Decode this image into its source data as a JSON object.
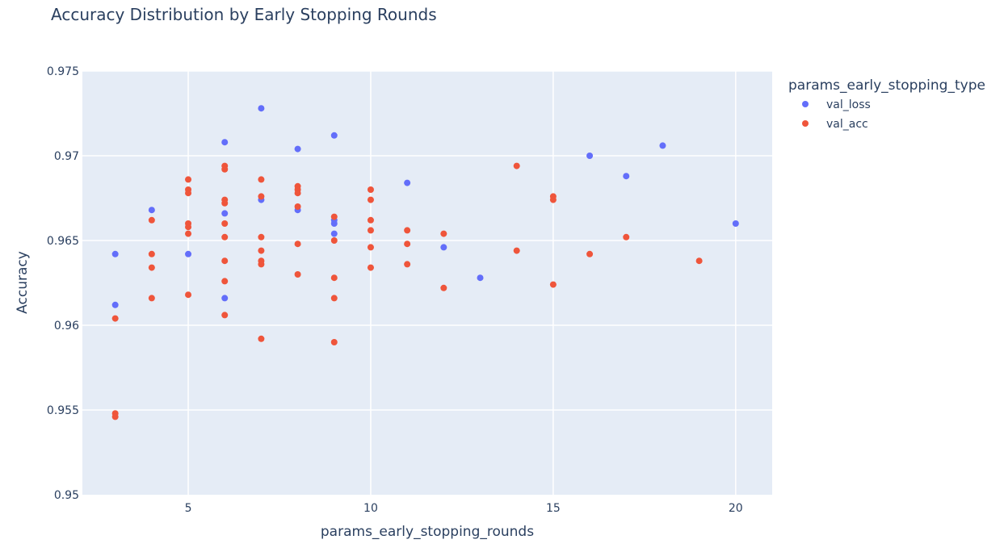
{
  "chart_data": {
    "type": "scatter",
    "title": "Accuracy Distribution by Early Stopping Rounds",
    "xlabel": "params_early_stopping_rounds",
    "ylabel": "Accuracy",
    "xlim": [
      2.1,
      21.0
    ],
    "ylim": [
      0.95,
      0.975
    ],
    "x_ticks": [
      5,
      10,
      15,
      20
    ],
    "y_ticks": [
      0.95,
      0.955,
      0.96,
      0.965,
      0.97,
      0.975
    ],
    "y_tick_labels": [
      "0.95",
      "0.955",
      "0.96",
      "0.965",
      "0.97",
      "0.975"
    ],
    "grid": true,
    "legend_title": "params_early_stopping_type",
    "legend_position": "top-right",
    "plot_background": "#e5ecf6",
    "series": [
      {
        "name": "val_loss",
        "color": "#636efa",
        "points": [
          [
            3,
            0.9642
          ],
          [
            3,
            0.9612
          ],
          [
            4,
            0.9668
          ],
          [
            5,
            0.9642
          ],
          [
            6,
            0.9708
          ],
          [
            6,
            0.9666
          ],
          [
            6,
            0.9616
          ],
          [
            7,
            0.9728
          ],
          [
            7,
            0.9674
          ],
          [
            8,
            0.9704
          ],
          [
            8,
            0.9668
          ],
          [
            9,
            0.9712
          ],
          [
            9,
            0.9662
          ],
          [
            9,
            0.966
          ],
          [
            9,
            0.9654
          ],
          [
            11,
            0.9684
          ],
          [
            12,
            0.9646
          ],
          [
            13,
            0.9628
          ],
          [
            16,
            0.97
          ],
          [
            17,
            0.9688
          ],
          [
            18,
            0.9706
          ],
          [
            20,
            0.966
          ]
        ]
      },
      {
        "name": "val_acc",
        "color": "#ef553b",
        "points": [
          [
            3,
            0.9604
          ],
          [
            3,
            0.9548
          ],
          [
            3,
            0.9546
          ],
          [
            4,
            0.9662
          ],
          [
            4,
            0.9642
          ],
          [
            4,
            0.9634
          ],
          [
            4,
            0.9616
          ],
          [
            5,
            0.9686
          ],
          [
            5,
            0.968
          ],
          [
            5,
            0.9678
          ],
          [
            5,
            0.966
          ],
          [
            5,
            0.9658
          ],
          [
            5,
            0.9654
          ],
          [
            5,
            0.9618
          ],
          [
            6,
            0.9694
          ],
          [
            6,
            0.9692
          ],
          [
            6,
            0.9674
          ],
          [
            6,
            0.9672
          ],
          [
            6,
            0.966
          ],
          [
            6,
            0.9652
          ],
          [
            6,
            0.9638
          ],
          [
            6,
            0.9626
          ],
          [
            6,
            0.9606
          ],
          [
            7,
            0.9686
          ],
          [
            7,
            0.9676
          ],
          [
            7,
            0.9652
          ],
          [
            7,
            0.9644
          ],
          [
            7,
            0.9638
          ],
          [
            7,
            0.9636
          ],
          [
            7,
            0.9592
          ],
          [
            8,
            0.9682
          ],
          [
            8,
            0.968
          ],
          [
            8,
            0.9678
          ],
          [
            8,
            0.967
          ],
          [
            8,
            0.9648
          ],
          [
            8,
            0.963
          ],
          [
            9,
            0.9664
          ],
          [
            9,
            0.965
          ],
          [
            9,
            0.9628
          ],
          [
            9,
            0.9616
          ],
          [
            9,
            0.959
          ],
          [
            10,
            0.968
          ],
          [
            10,
            0.9674
          ],
          [
            10,
            0.9662
          ],
          [
            10,
            0.9656
          ],
          [
            10,
            0.9646
          ],
          [
            10,
            0.9634
          ],
          [
            11,
            0.9656
          ],
          [
            11,
            0.9648
          ],
          [
            11,
            0.9636
          ],
          [
            12,
            0.9654
          ],
          [
            12,
            0.9622
          ],
          [
            14,
            0.9694
          ],
          [
            14,
            0.9644
          ],
          [
            15,
            0.9676
          ],
          [
            15,
            0.9674
          ],
          [
            15,
            0.9624
          ],
          [
            16,
            0.9642
          ],
          [
            17,
            0.9652
          ],
          [
            19,
            0.9638
          ]
        ]
      }
    ]
  }
}
